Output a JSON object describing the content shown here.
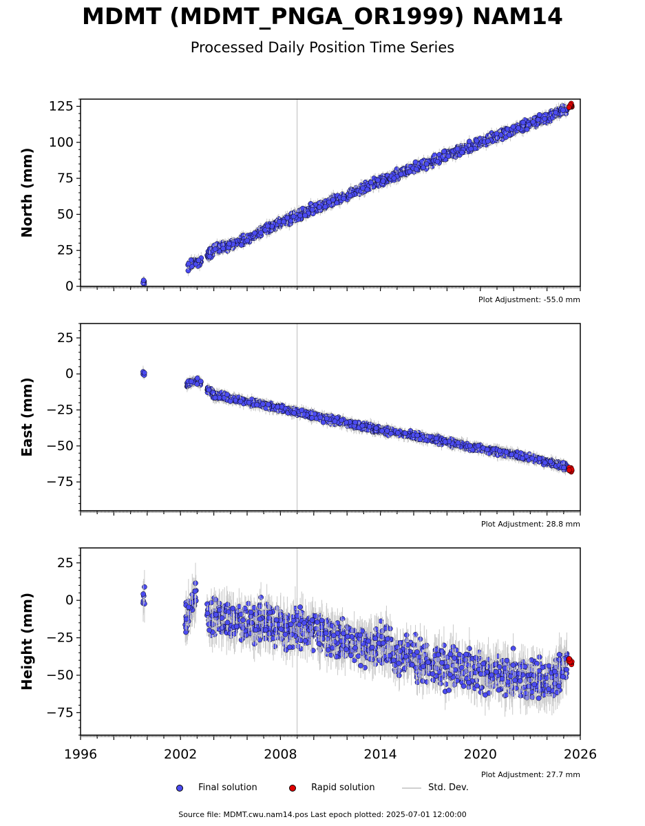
{
  "header": {
    "title": "MDMT (MDMT_PNGA_OR1999) NAM14",
    "subtitle": "Processed Daily Position Time Series"
  },
  "legend": {
    "final_label": "Final solution",
    "rapid_label": "Rapid solution",
    "std_label": "Std. Dev."
  },
  "footer": {
    "source": "Source file: MDMT.cwu.nam14.pos  Last epoch plotted: 2025-07-01 12:00:00"
  },
  "colors": {
    "final": "#4b4bf0",
    "rapid": "#e00000",
    "std": "#c8c8c8",
    "vline": "#d0d0d0"
  },
  "chart_data": [
    {
      "type": "scatter",
      "ylabel": "North (mm)",
      "adjustment": "Plot Adjustment: -55.0 mm",
      "xlim": [
        1996,
        2026
      ],
      "ylim": [
        0,
        130
      ],
      "yticks": [
        0,
        25,
        50,
        75,
        100,
        125
      ],
      "xticks": [
        1996,
        2002,
        2008,
        2014,
        2020,
        2026
      ],
      "show_xtick_labels": false,
      "reference_line_x": 2009.0,
      "series": [
        {
          "role": "final",
          "x": [
            1999.8,
            2002.4,
            2002.8,
            2003.2,
            2004.0,
            2006.0,
            2008.0,
            2010.0,
            2012.0,
            2014.0,
            2016.0,
            2018.0,
            2020.0,
            2022.0,
            2024.0,
            2025.2
          ],
          "y": [
            2,
            14,
            16,
            18,
            25,
            33,
            44,
            54,
            63,
            73,
            82,
            91,
            100,
            109,
            117,
            123
          ]
        },
        {
          "role": "rapid",
          "x": [
            2025.3,
            2025.5
          ],
          "y": [
            125,
            126
          ]
        }
      ]
    },
    {
      "type": "scatter",
      "ylabel": "East (mm)",
      "adjustment": "Plot Adjustment: 28.8 mm",
      "xlim": [
        1996,
        2026
      ],
      "ylim": [
        -95,
        35
      ],
      "yticks": [
        -75,
        -50,
        -25,
        0,
        25
      ],
      "xticks": [
        1996,
        2002,
        2008,
        2014,
        2020,
        2026
      ],
      "show_xtick_labels": false,
      "reference_line_x": 2009.0,
      "series": [
        {
          "role": "final",
          "x": [
            1999.8,
            2002.4,
            2002.8,
            2003.2,
            2004.0,
            2006.0,
            2008.0,
            2010.0,
            2012.0,
            2014.0,
            2016.0,
            2018.0,
            2020.0,
            2022.0,
            2024.0,
            2025.2
          ],
          "y": [
            1,
            -8,
            -5,
            -6,
            -15,
            -19,
            -24,
            -29,
            -34,
            -39,
            -43,
            -47,
            -52,
            -56,
            -61,
            -65
          ]
        },
        {
          "role": "rapid",
          "x": [
            2025.3,
            2025.5
          ],
          "y": [
            -66,
            -67
          ]
        }
      ]
    },
    {
      "type": "scatter",
      "ylabel": "Height (mm)",
      "adjustment": "Plot Adjustment: 27.7 mm",
      "xlim": [
        1996,
        2026
      ],
      "ylim": [
        -90,
        35
      ],
      "yticks": [
        -75,
        -50,
        -25,
        0,
        25
      ],
      "xticks": [
        1996,
        2002,
        2008,
        2014,
        2020,
        2026
      ],
      "show_xtick_labels": true,
      "reference_line_x": 2009.0,
      "series": [
        {
          "role": "final",
          "x": [
            1999.8,
            2002.3,
            2002.9,
            2004.0,
            2006.0,
            2008.0,
            2010.0,
            2012.0,
            2014.0,
            2016.0,
            2018.0,
            2020.0,
            2022.0,
            2024.0,
            2025.2
          ],
          "y": [
            5,
            -10,
            5,
            -12,
            -15,
            -18,
            -20,
            -28,
            -32,
            -38,
            -45,
            -48,
            -50,
            -55,
            -42
          ]
        },
        {
          "role": "rapid",
          "x": [
            2025.3,
            2025.5
          ],
          "y": [
            -40,
            -42
          ]
        }
      ]
    }
  ]
}
